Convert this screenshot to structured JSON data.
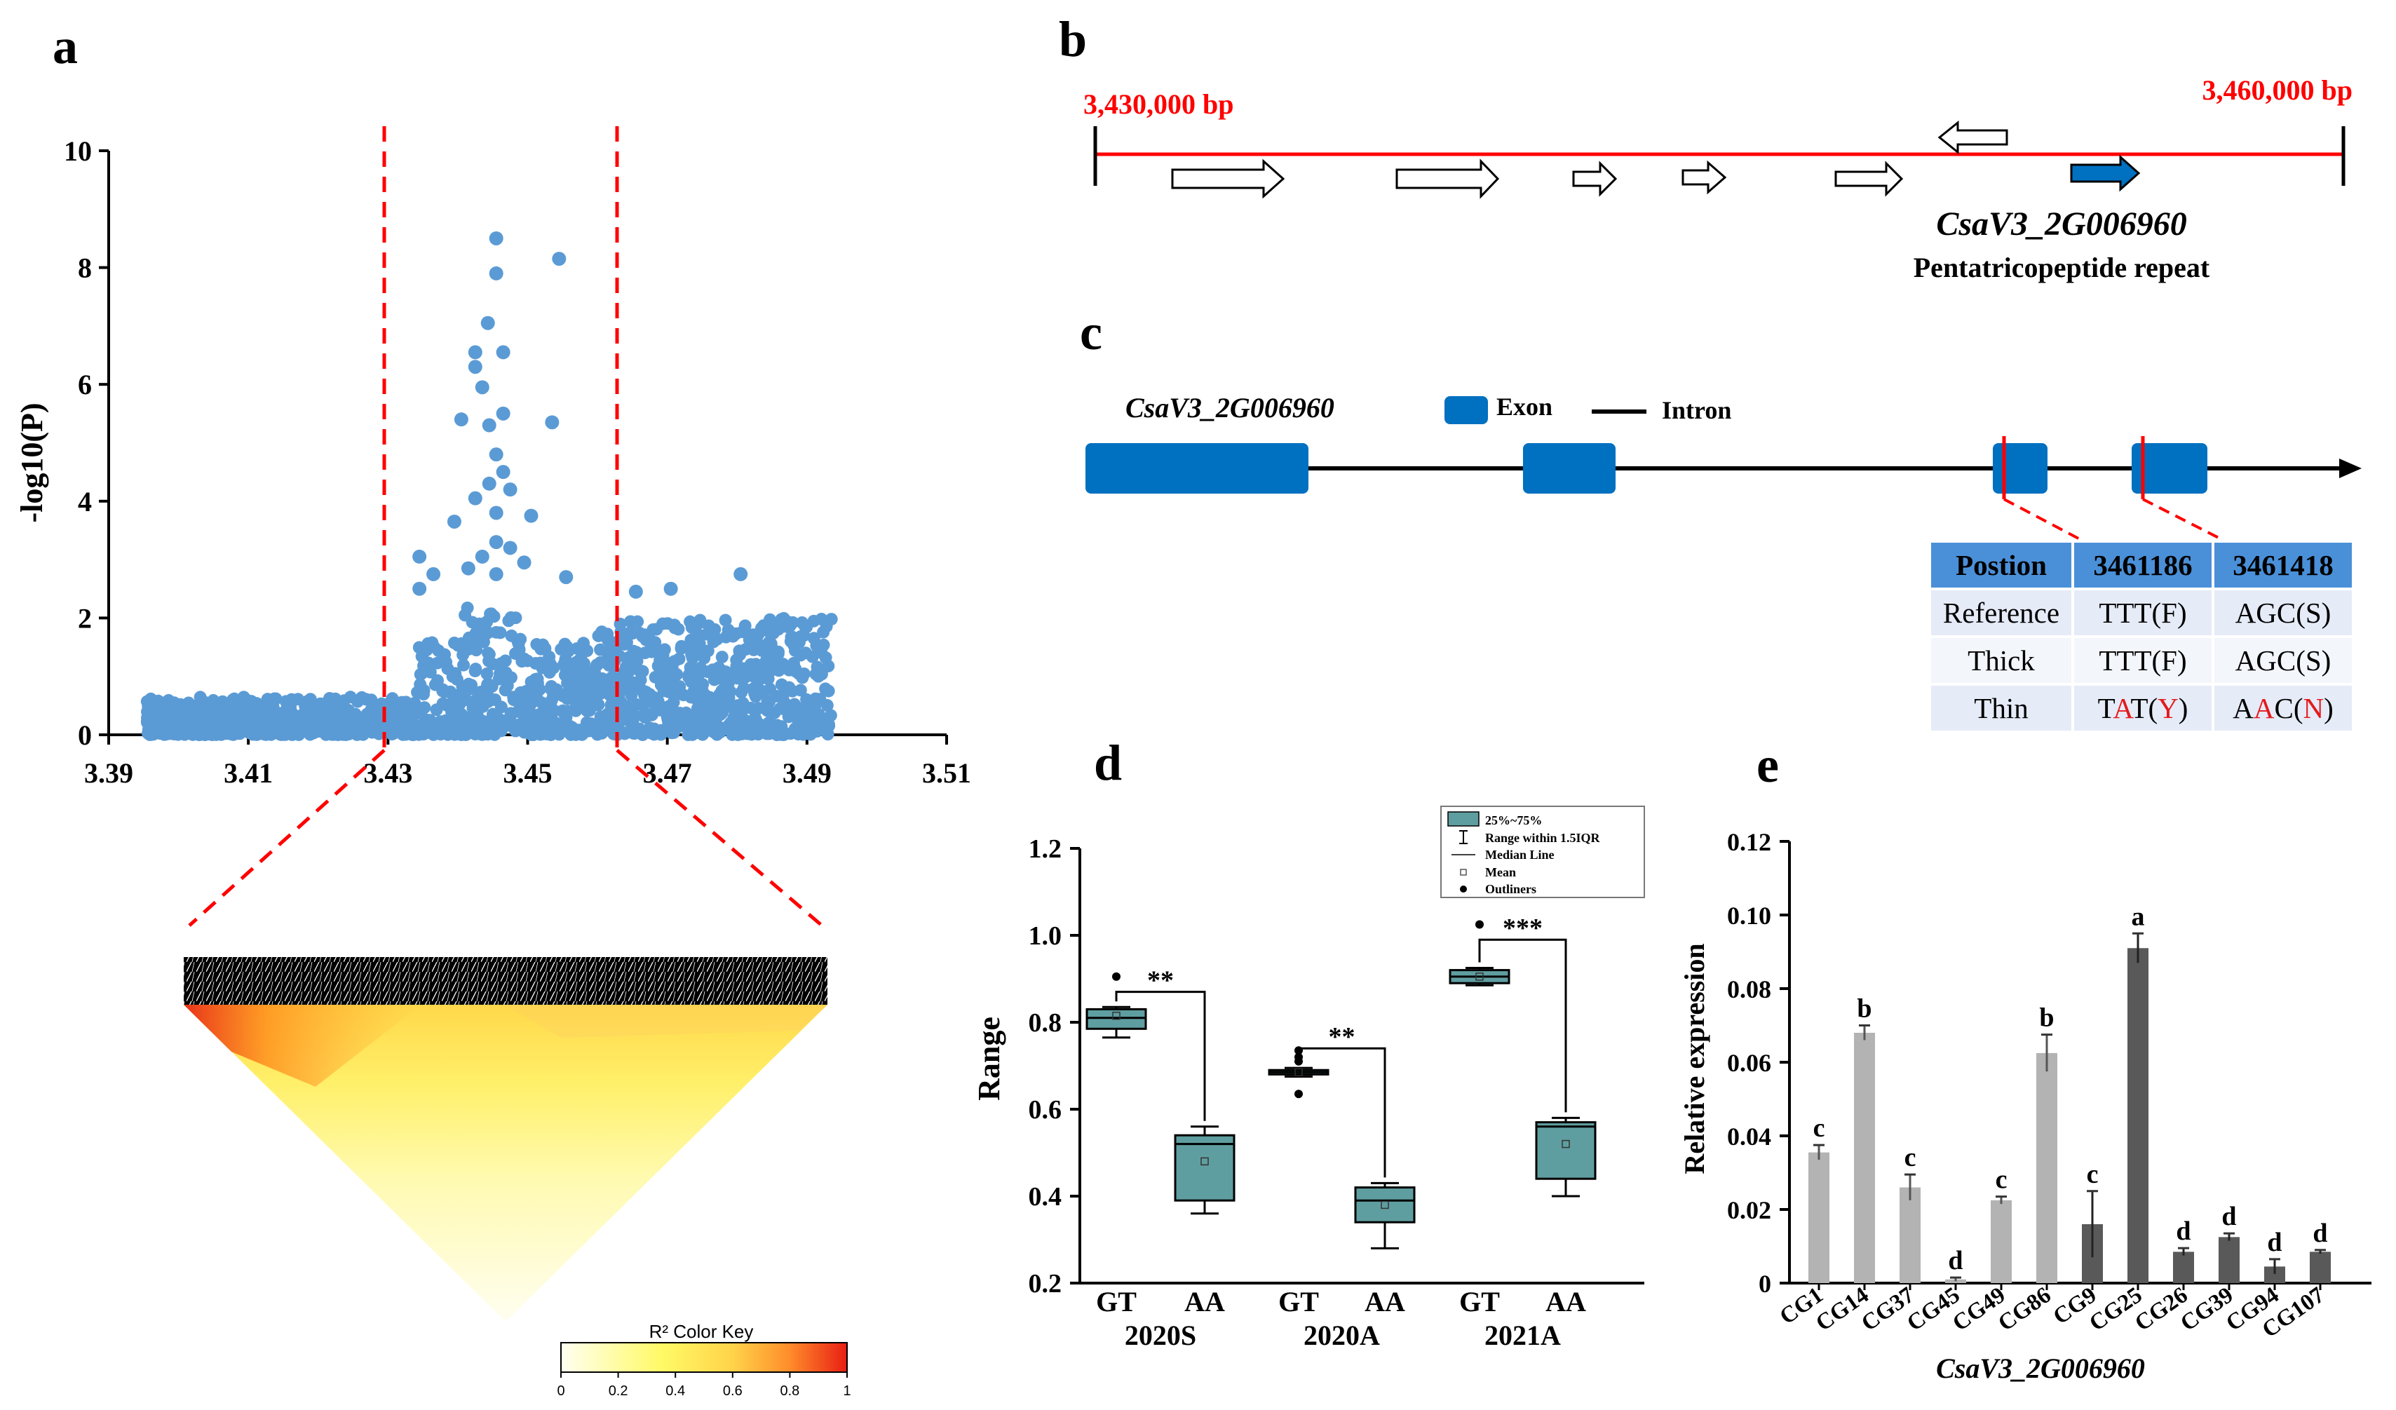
{
  "panels": {
    "a": "a",
    "b": "b",
    "c": "c",
    "d": "d",
    "e": "e"
  },
  "colors": {
    "accent": "#ff0000",
    "exon": "#0070c0",
    "box": "#5f9ea0",
    "bar_light": "#b3b3b3",
    "bar_dark": "#595959",
    "scatter": "#5b9bd5"
  },
  "chart_data": [
    {
      "id": "a-manhattan",
      "type": "scatter",
      "xlabel": "",
      "ylabel": "-log10(P)",
      "xlim": [
        3.39,
        3.51
      ],
      "ylim": [
        0,
        10
      ],
      "xticks": [
        "3.39",
        "3.41",
        "3.43",
        "3.45",
        "3.47",
        "3.49",
        "3.51"
      ],
      "yticks": [
        "0",
        "2",
        "4",
        "6",
        "8",
        "10"
      ],
      "highlight_region": [
        3.43,
        3.4635
      ],
      "peak_points": [
        {
          "x": 3.4455,
          "y": 8.5
        },
        {
          "x": 3.4545,
          "y": 8.15
        },
        {
          "x": 3.4455,
          "y": 7.9
        },
        {
          "x": 3.4443,
          "y": 7.05
        },
        {
          "x": 3.4465,
          "y": 6.55
        },
        {
          "x": 3.4425,
          "y": 6.55
        },
        {
          "x": 3.4425,
          "y": 6.3
        },
        {
          "x": 3.4435,
          "y": 5.95
        },
        {
          "x": 3.4465,
          "y": 5.5
        },
        {
          "x": 3.4445,
          "y": 5.3
        },
        {
          "x": 3.4535,
          "y": 5.35
        },
        {
          "x": 3.4405,
          "y": 5.4
        },
        {
          "x": 3.4455,
          "y": 4.8
        },
        {
          "x": 3.4465,
          "y": 4.5
        },
        {
          "x": 3.4445,
          "y": 4.3
        },
        {
          "x": 3.4475,
          "y": 4.2
        },
        {
          "x": 3.4425,
          "y": 4.05
        },
        {
          "x": 3.4455,
          "y": 3.8
        },
        {
          "x": 3.4505,
          "y": 3.75
        },
        {
          "x": 3.4395,
          "y": 3.65
        },
        {
          "x": 3.4455,
          "y": 3.3
        },
        {
          "x": 3.4475,
          "y": 3.2
        },
        {
          "x": 3.4435,
          "y": 3.05
        },
        {
          "x": 3.4495,
          "y": 2.95
        },
        {
          "x": 3.4345,
          "y": 3.05
        },
        {
          "x": 3.4455,
          "y": 2.75
        },
        {
          "x": 3.4365,
          "y": 2.75
        },
        {
          "x": 3.4415,
          "y": 2.85
        },
        {
          "x": 3.4555,
          "y": 2.7
        },
        {
          "x": 3.4345,
          "y": 2.5
        },
        {
          "x": 3.4805,
          "y": 2.75
        },
        {
          "x": 3.4705,
          "y": 2.5
        },
        {
          "x": 3.4655,
          "y": 2.45
        }
      ],
      "baseline_range_x": [
        3.3955,
        3.4935
      ],
      "point_count_note": "dense cloud of markers near 0-2"
    },
    {
      "id": "d-boxplot",
      "type": "boxplot",
      "ylabel": "Range",
      "ylim": [
        0.2,
        1.2
      ],
      "yticks": [
        "0.2",
        "0.4",
        "0.6",
        "0.8",
        "1.0",
        "1.2"
      ],
      "groups": [
        "2020S",
        "2020A",
        "2021A"
      ],
      "genotypes": [
        "GT",
        "AA"
      ],
      "boxes": [
        {
          "group": "2020S",
          "genotype": "GT",
          "q1": 0.785,
          "median": 0.81,
          "q3": 0.83,
          "min": 0.765,
          "max": 0.835,
          "mean": 0.815,
          "outliers": [
            0.905
          ]
        },
        {
          "group": "2020S",
          "genotype": "AA",
          "q1": 0.39,
          "median": 0.52,
          "q3": 0.54,
          "min": 0.36,
          "max": 0.56,
          "mean": 0.48,
          "outliers": []
        },
        {
          "group": "2020A",
          "genotype": "GT",
          "q1": 0.68,
          "median": 0.685,
          "q3": 0.69,
          "min": 0.675,
          "max": 0.695,
          "mean": 0.685,
          "outliers": [
            0.735,
            0.72,
            0.71,
            0.635
          ]
        },
        {
          "group": "2020A",
          "genotype": "AA",
          "q1": 0.34,
          "median": 0.39,
          "q3": 0.42,
          "min": 0.28,
          "max": 0.43,
          "mean": 0.38,
          "outliers": []
        },
        {
          "group": "2021A",
          "genotype": "GT",
          "q1": 0.89,
          "median": 0.905,
          "q3": 0.92,
          "min": 0.885,
          "max": 0.925,
          "mean": 0.905,
          "outliers": [
            1.025
          ]
        },
        {
          "group": "2021A",
          "genotype": "AA",
          "q1": 0.44,
          "median": 0.56,
          "q3": 0.57,
          "min": 0.4,
          "max": 0.58,
          "mean": 0.52,
          "outliers": []
        }
      ],
      "significance": [
        "**",
        "**",
        "***"
      ],
      "legend": [
        "25%~75%",
        "Range within 1.5IQR",
        "Median Line",
        "Mean",
        "Outliners"
      ]
    },
    {
      "id": "e-bar",
      "type": "bar",
      "ylabel": "Relative expression",
      "xlabel": "CsaV3_2G006960",
      "ylim": [
        0,
        0.12
      ],
      "yticks": [
        "0",
        "0.02",
        "0.04",
        "0.06",
        "0.08",
        "0.10",
        "0.12"
      ],
      "categories": [
        "CG1",
        "CG14",
        "CG37",
        "CG45",
        "CG49",
        "CG86",
        "CG9",
        "CG25",
        "CG26",
        "CG39",
        "CG94",
        "CG107"
      ],
      "values": [
        0.0355,
        0.068,
        0.026,
        0.001,
        0.0225,
        0.0625,
        0.016,
        0.091,
        0.0085,
        0.0125,
        0.0045,
        0.0085
      ],
      "errors": [
        0.002,
        0.002,
        0.0035,
        0.0005,
        0.001,
        0.005,
        0.009,
        0.004,
        0.001,
        0.001,
        0.002,
        0.0005
      ],
      "letters": [
        "c",
        "b",
        "c",
        "d",
        "c",
        "b",
        "c",
        "a",
        "d",
        "d",
        "d",
        "d"
      ],
      "shade": [
        "light",
        "light",
        "light",
        "light",
        "light",
        "light",
        "dark",
        "dark",
        "dark",
        "dark",
        "dark",
        "dark"
      ]
    }
  ],
  "panel_a_ld": {
    "color_key_title": "R² Color Key",
    "key_ticks": [
      "0",
      "0.2",
      "0.4",
      "0.6",
      "0.8",
      "1"
    ]
  },
  "panel_b": {
    "start_label": "3,430,000 bp",
    "end_label": "3,460,000 bp",
    "gene": "CsaV3_2G006960",
    "annotation": "Pentatricopeptide repeat"
  },
  "panel_c": {
    "gene": "CsaV3_2G006960",
    "exon_label": "Exon",
    "intron_label": "Intron",
    "table_header": [
      "Postion",
      "3461186",
      "3461418"
    ],
    "rows": [
      {
        "name": "Reference",
        "v1": "TTT(F)",
        "v2": "AGC(S)"
      },
      {
        "name": "Thick",
        "v1": "TTT(F)",
        "v2": "AGC(S)"
      },
      {
        "name": "Thin",
        "v1a": "T",
        "v1b": "A",
        "v1c": "T(",
        "v1d": "Y",
        "v1e": ")",
        "v2a": "A",
        "v2b": "A",
        "v2c": "C(",
        "v2d": "N",
        "v2e": ")"
      }
    ]
  }
}
